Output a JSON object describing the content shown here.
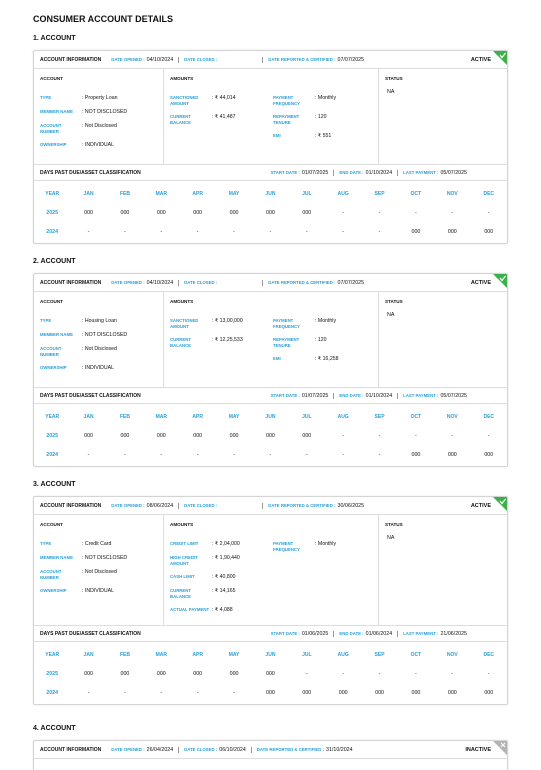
{
  "title": "CONSUMER ACCOUNT DETAILS",
  "labels": {
    "account_information": "ACCOUNT INFORMATION",
    "date_opened": "DATE OPENED :",
    "date_closed": "DATE CLOSED :",
    "date_reported": "DATE REPORTED & CERTIFIED :",
    "account": "ACCOUNT",
    "amounts": "AMOUNTS",
    "status": "STATUS",
    "dpd": "DAYS PAST DUE/ASSET CLASSIFICATION",
    "start_date": "START DATE :",
    "end_date": "END DATE :",
    "last_payment": "LAST PAYMENT :",
    "table_header": [
      "YEAR",
      "JAN",
      "FEB",
      "MAR",
      "APR",
      "MAY",
      "JUN",
      "JUL",
      "AUG",
      "SEP",
      "OCT",
      "NOV",
      "DEC"
    ]
  },
  "accounts": [
    {
      "heading": "1. ACCOUNT",
      "date_opened": "04/10/2024",
      "date_reported": "07/07/2025",
      "status_badge": "ACTIVE",
      "account_fields": [
        {
          "label": "TYPE",
          "value": ": Property Loan"
        },
        {
          "label": "MEMBER NAME",
          "value": ": NOT DISCLOSED"
        },
        {
          "label": "ACCOUNT NUMBER",
          "value": ": Not Disclosed"
        },
        {
          "label": "OWNERSHIP",
          "value": ": INDIVIDUAL"
        }
      ],
      "amounts_left": [
        {
          "label": "SANCTIONED AMOUNT",
          "value": ": ₹ 44,014"
        },
        {
          "label": "CURRENT BALANCE",
          "value": ": ₹ 41,487"
        }
      ],
      "amounts_right": [
        {
          "label": "PAYMENT FREQUENCY",
          "value": ": Monthly"
        },
        {
          "label": "REPAYMENT TENURE",
          "value": ": 120"
        },
        {
          "label": "EMI",
          "value": ": ₹ 551"
        }
      ],
      "status": "NA",
      "dpd": {
        "start_date": "01/07/2025",
        "end_date": "01/10/2024",
        "last_payment": "05/07/2025",
        "rows": [
          [
            "2025",
            "000",
            "000",
            "000",
            "000",
            "000",
            "000",
            "000",
            "-",
            "-",
            "-",
            "-",
            "-"
          ],
          [
            "2024",
            "-",
            "-",
            "-",
            "-",
            "-",
            "-",
            "-",
            "-",
            "-",
            "000",
            "000",
            "000"
          ]
        ]
      }
    },
    {
      "heading": "2. ACCOUNT",
      "date_opened": "04/10/2024",
      "date_reported": "07/07/2025",
      "status_badge": "ACTIVE",
      "account_fields": [
        {
          "label": "TYPE",
          "value": ": Housing Loan"
        },
        {
          "label": "MEMBER NAME",
          "value": ": NOT DISCLOSED"
        },
        {
          "label": "ACCOUNT NUMBER",
          "value": ": Not Disclosed"
        },
        {
          "label": "OWNERSHIP",
          "value": ": INDIVIDUAL"
        }
      ],
      "amounts_left": [
        {
          "label": "SANCTIONED AMOUNT",
          "value": ": ₹ 13,00,000"
        },
        {
          "label": "CURRENT BALANCE",
          "value": ": ₹ 12,25,533"
        }
      ],
      "amounts_right": [
        {
          "label": "PAYMENT FREQUENCY",
          "value": ": Monthly"
        },
        {
          "label": "REPAYMENT TENURE",
          "value": ": 120"
        },
        {
          "label": "EMI",
          "value": ": ₹ 16,258"
        }
      ],
      "status": "NA",
      "dpd": {
        "start_date": "01/07/2025",
        "end_date": "01/10/2024",
        "last_payment": "05/07/2025",
        "rows": [
          [
            "2025",
            "000",
            "000",
            "000",
            "000",
            "000",
            "000",
            "000",
            "-",
            "-",
            "-",
            "-",
            "-"
          ],
          [
            "2024",
            "-",
            "-",
            "-",
            "-",
            "-",
            "-",
            "-",
            "-",
            "-",
            "000",
            "000",
            "000"
          ]
        ]
      }
    },
    {
      "heading": "3. ACCOUNT",
      "date_opened": "08/06/2024",
      "date_reported": "30/06/2025",
      "status_badge": "ACTIVE",
      "account_fields": [
        {
          "label": "TYPE",
          "value": ": Credit Card"
        },
        {
          "label": "MEMBER NAME",
          "value": ": NOT DISCLOSED"
        },
        {
          "label": "ACCOUNT NUMBER",
          "value": ": Not Disclosed"
        },
        {
          "label": "OWNERSHIP",
          "value": ": INDIVIDUAL"
        }
      ],
      "amounts_left": [
        {
          "label": "CREDIT LIMIT",
          "value": ": ₹ 2,04,000"
        },
        {
          "label": "HIGH CREDIT AMOUNT",
          "value": ": ₹ 1,90,440"
        },
        {
          "label": "CASH LIMIT",
          "value": ": ₹ 40,800"
        },
        {
          "label": "CURRENT BALANCE",
          "value": ": ₹ 14,165"
        },
        {
          "label": "ACTUAL PAYMENT",
          "value": ": ₹ 4,088"
        }
      ],
      "amounts_right": [
        {
          "label": "PAYMENT FREQUENCY",
          "value": ": Monthly"
        }
      ],
      "status": "NA",
      "dpd": {
        "start_date": "01/06/2025",
        "end_date": "01/06/2024",
        "last_payment": "21/06/2025",
        "rows": [
          [
            "2025",
            "000",
            "000",
            "000",
            "000",
            "000",
            "000",
            "-",
            "-",
            "-",
            "-",
            "-",
            "-"
          ],
          [
            "2024",
            "-",
            "-",
            "-",
            "-",
            "-",
            "000",
            "000",
            "000",
            "000",
            "000",
            "000",
            "000"
          ]
        ]
      }
    },
    {
      "heading": "4. ACCOUNT",
      "date_opened": "26/04/2024",
      "date_closed": "06/10/2024",
      "date_reported": "31/10/2024",
      "status_badge": "INACTIVE"
    }
  ]
}
